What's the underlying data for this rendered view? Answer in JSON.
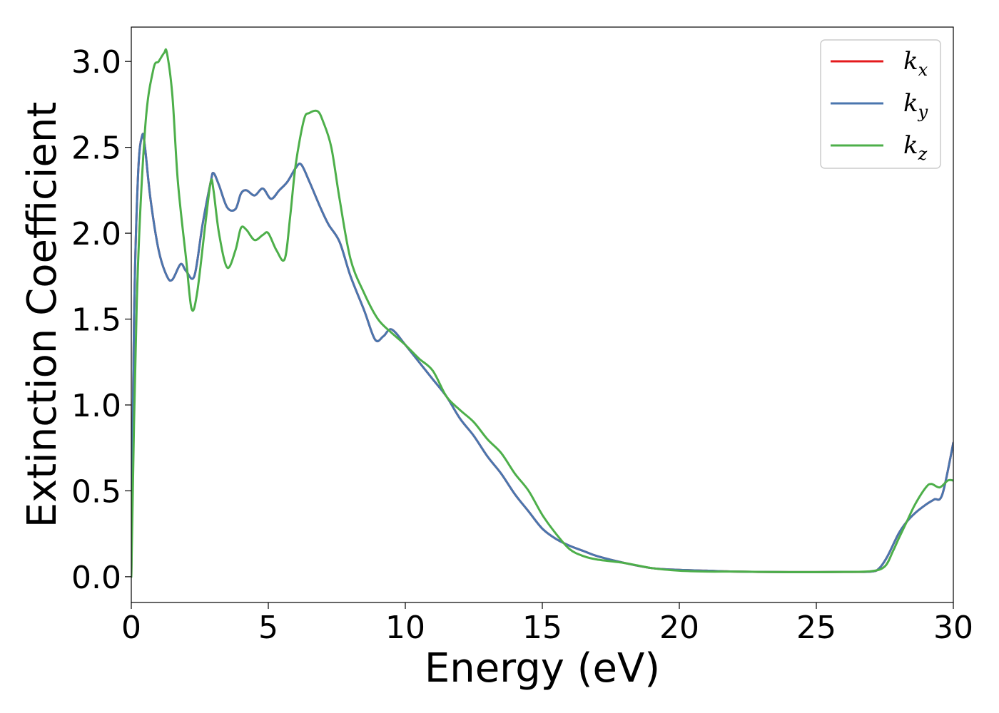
{
  "chart_data": {
    "type": "line",
    "title": "",
    "xlabel": "Energy (eV)",
    "ylabel": "Extinction Coefficient",
    "xlim": [
      0,
      30
    ],
    "ylim": [
      -0.15,
      3.2
    ],
    "xticks": [
      0,
      5,
      10,
      15,
      20,
      25,
      30
    ],
    "xtick_labels": [
      "0",
      "5",
      "10",
      "15",
      "20",
      "25",
      "30"
    ],
    "yticks": [
      0.0,
      0.5,
      1.0,
      1.5,
      2.0,
      2.5,
      3.0
    ],
    "ytick_labels": [
      "0.0",
      "0.5",
      "1.0",
      "1.5",
      "2.0",
      "2.5",
      "3.0"
    ],
    "grid": false,
    "legend_position": "top-right",
    "series": [
      {
        "name": "k",
        "subscript": "x",
        "color": "#e41a1c",
        "x": [
          0,
          0.1,
          0.25,
          0.4,
          0.5,
          0.7,
          1.0,
          1.3,
          1.5,
          1.8,
          2.0,
          2.3,
          2.6,
          2.9,
          3.0,
          3.2,
          3.5,
          3.8,
          4.0,
          4.2,
          4.5,
          4.8,
          5.1,
          5.4,
          5.7,
          6.0,
          6.2,
          6.5,
          6.9,
          7.2,
          7.6,
          8.0,
          8.5,
          8.9,
          9.2,
          9.5,
          10.0,
          10.5,
          11.0,
          11.5,
          12.0,
          12.5,
          13.0,
          13.5,
          14.0,
          14.5,
          15.0,
          15.5,
          16.0,
          16.5,
          17.0,
          18.0,
          19.0,
          20.0,
          21.0,
          22.0,
          23.0,
          24.0,
          25.0,
          26.0,
          27.0,
          27.3,
          27.6,
          28.0,
          28.3,
          28.6,
          29.0,
          29.3,
          29.6,
          30.0
        ],
        "y": [
          0.0,
          1.5,
          2.35,
          2.57,
          2.5,
          2.2,
          1.9,
          1.75,
          1.73,
          1.82,
          1.78,
          1.75,
          2.05,
          2.3,
          2.35,
          2.28,
          2.15,
          2.14,
          2.23,
          2.25,
          2.22,
          2.26,
          2.2,
          2.25,
          2.3,
          2.38,
          2.4,
          2.3,
          2.15,
          2.05,
          1.95,
          1.75,
          1.55,
          1.38,
          1.4,
          1.44,
          1.35,
          1.25,
          1.15,
          1.05,
          0.92,
          0.82,
          0.7,
          0.6,
          0.48,
          0.38,
          0.28,
          0.22,
          0.18,
          0.15,
          0.12,
          0.08,
          0.05,
          0.04,
          0.035,
          0.03,
          0.028,
          0.027,
          0.027,
          0.028,
          0.03,
          0.05,
          0.12,
          0.25,
          0.32,
          0.37,
          0.42,
          0.45,
          0.48,
          0.78
        ]
      },
      {
        "name": "k",
        "subscript": "y",
        "color": "#4a76ae",
        "x": [
          0,
          0.1,
          0.25,
          0.4,
          0.5,
          0.7,
          1.0,
          1.3,
          1.5,
          1.8,
          2.0,
          2.3,
          2.6,
          2.9,
          3.0,
          3.2,
          3.5,
          3.8,
          4.0,
          4.2,
          4.5,
          4.8,
          5.1,
          5.4,
          5.7,
          6.0,
          6.2,
          6.5,
          6.9,
          7.2,
          7.6,
          8.0,
          8.5,
          8.9,
          9.2,
          9.5,
          10.0,
          10.5,
          11.0,
          11.5,
          12.0,
          12.5,
          13.0,
          13.5,
          14.0,
          14.5,
          15.0,
          15.5,
          16.0,
          16.5,
          17.0,
          18.0,
          19.0,
          20.0,
          21.0,
          22.0,
          23.0,
          24.0,
          25.0,
          26.0,
          27.0,
          27.3,
          27.6,
          28.0,
          28.3,
          28.6,
          29.0,
          29.3,
          29.6,
          30.0
        ],
        "y": [
          0.0,
          1.5,
          2.35,
          2.57,
          2.5,
          2.2,
          1.9,
          1.75,
          1.73,
          1.82,
          1.78,
          1.75,
          2.05,
          2.3,
          2.35,
          2.28,
          2.15,
          2.14,
          2.23,
          2.25,
          2.22,
          2.26,
          2.2,
          2.25,
          2.3,
          2.38,
          2.4,
          2.3,
          2.15,
          2.05,
          1.95,
          1.75,
          1.55,
          1.38,
          1.4,
          1.44,
          1.35,
          1.25,
          1.15,
          1.05,
          0.92,
          0.82,
          0.7,
          0.6,
          0.48,
          0.38,
          0.28,
          0.22,
          0.18,
          0.15,
          0.12,
          0.08,
          0.05,
          0.04,
          0.035,
          0.03,
          0.028,
          0.027,
          0.027,
          0.028,
          0.03,
          0.05,
          0.12,
          0.25,
          0.32,
          0.37,
          0.42,
          0.45,
          0.48,
          0.78
        ]
      },
      {
        "name": "k",
        "subscript": "z",
        "color": "#4daf4a",
        "x": [
          0,
          0.2,
          0.5,
          0.8,
          1.0,
          1.2,
          1.3,
          1.5,
          1.7,
          2.0,
          2.2,
          2.4,
          2.7,
          2.9,
          3.0,
          3.2,
          3.5,
          3.8,
          4.0,
          4.2,
          4.5,
          4.8,
          5.0,
          5.3,
          5.6,
          5.8,
          6.0,
          6.3,
          6.5,
          6.8,
          7.0,
          7.3,
          7.6,
          8.0,
          8.5,
          9.0,
          9.5,
          10.0,
          10.5,
          11.0,
          11.5,
          12.0,
          12.5,
          13.0,
          13.5,
          14.0,
          14.5,
          15.0,
          15.5,
          16.0,
          16.5,
          17.0,
          18.0,
          19.0,
          20.0,
          21.0,
          22.0,
          23.0,
          24.0,
          25.0,
          26.0,
          27.0,
          27.5,
          27.8,
          28.0,
          28.3,
          28.6,
          29.0,
          29.2,
          29.5,
          29.8,
          30.0
        ],
        "y": [
          0.0,
          1.6,
          2.6,
          2.95,
          3.0,
          3.05,
          3.05,
          2.8,
          2.3,
          1.85,
          1.56,
          1.65,
          2.05,
          2.3,
          2.25,
          2.0,
          1.8,
          1.9,
          2.03,
          2.02,
          1.96,
          1.99,
          2.0,
          1.9,
          1.85,
          2.1,
          2.4,
          2.66,
          2.7,
          2.71,
          2.65,
          2.5,
          2.2,
          1.85,
          1.65,
          1.5,
          1.42,
          1.35,
          1.27,
          1.2,
          1.05,
          0.97,
          0.9,
          0.8,
          0.72,
          0.6,
          0.5,
          0.36,
          0.25,
          0.16,
          0.12,
          0.1,
          0.08,
          0.05,
          0.035,
          0.03,
          0.03,
          0.028,
          0.027,
          0.027,
          0.028,
          0.032,
          0.06,
          0.15,
          0.22,
          0.32,
          0.42,
          0.52,
          0.54,
          0.52,
          0.56,
          0.56
        ]
      }
    ]
  }
}
